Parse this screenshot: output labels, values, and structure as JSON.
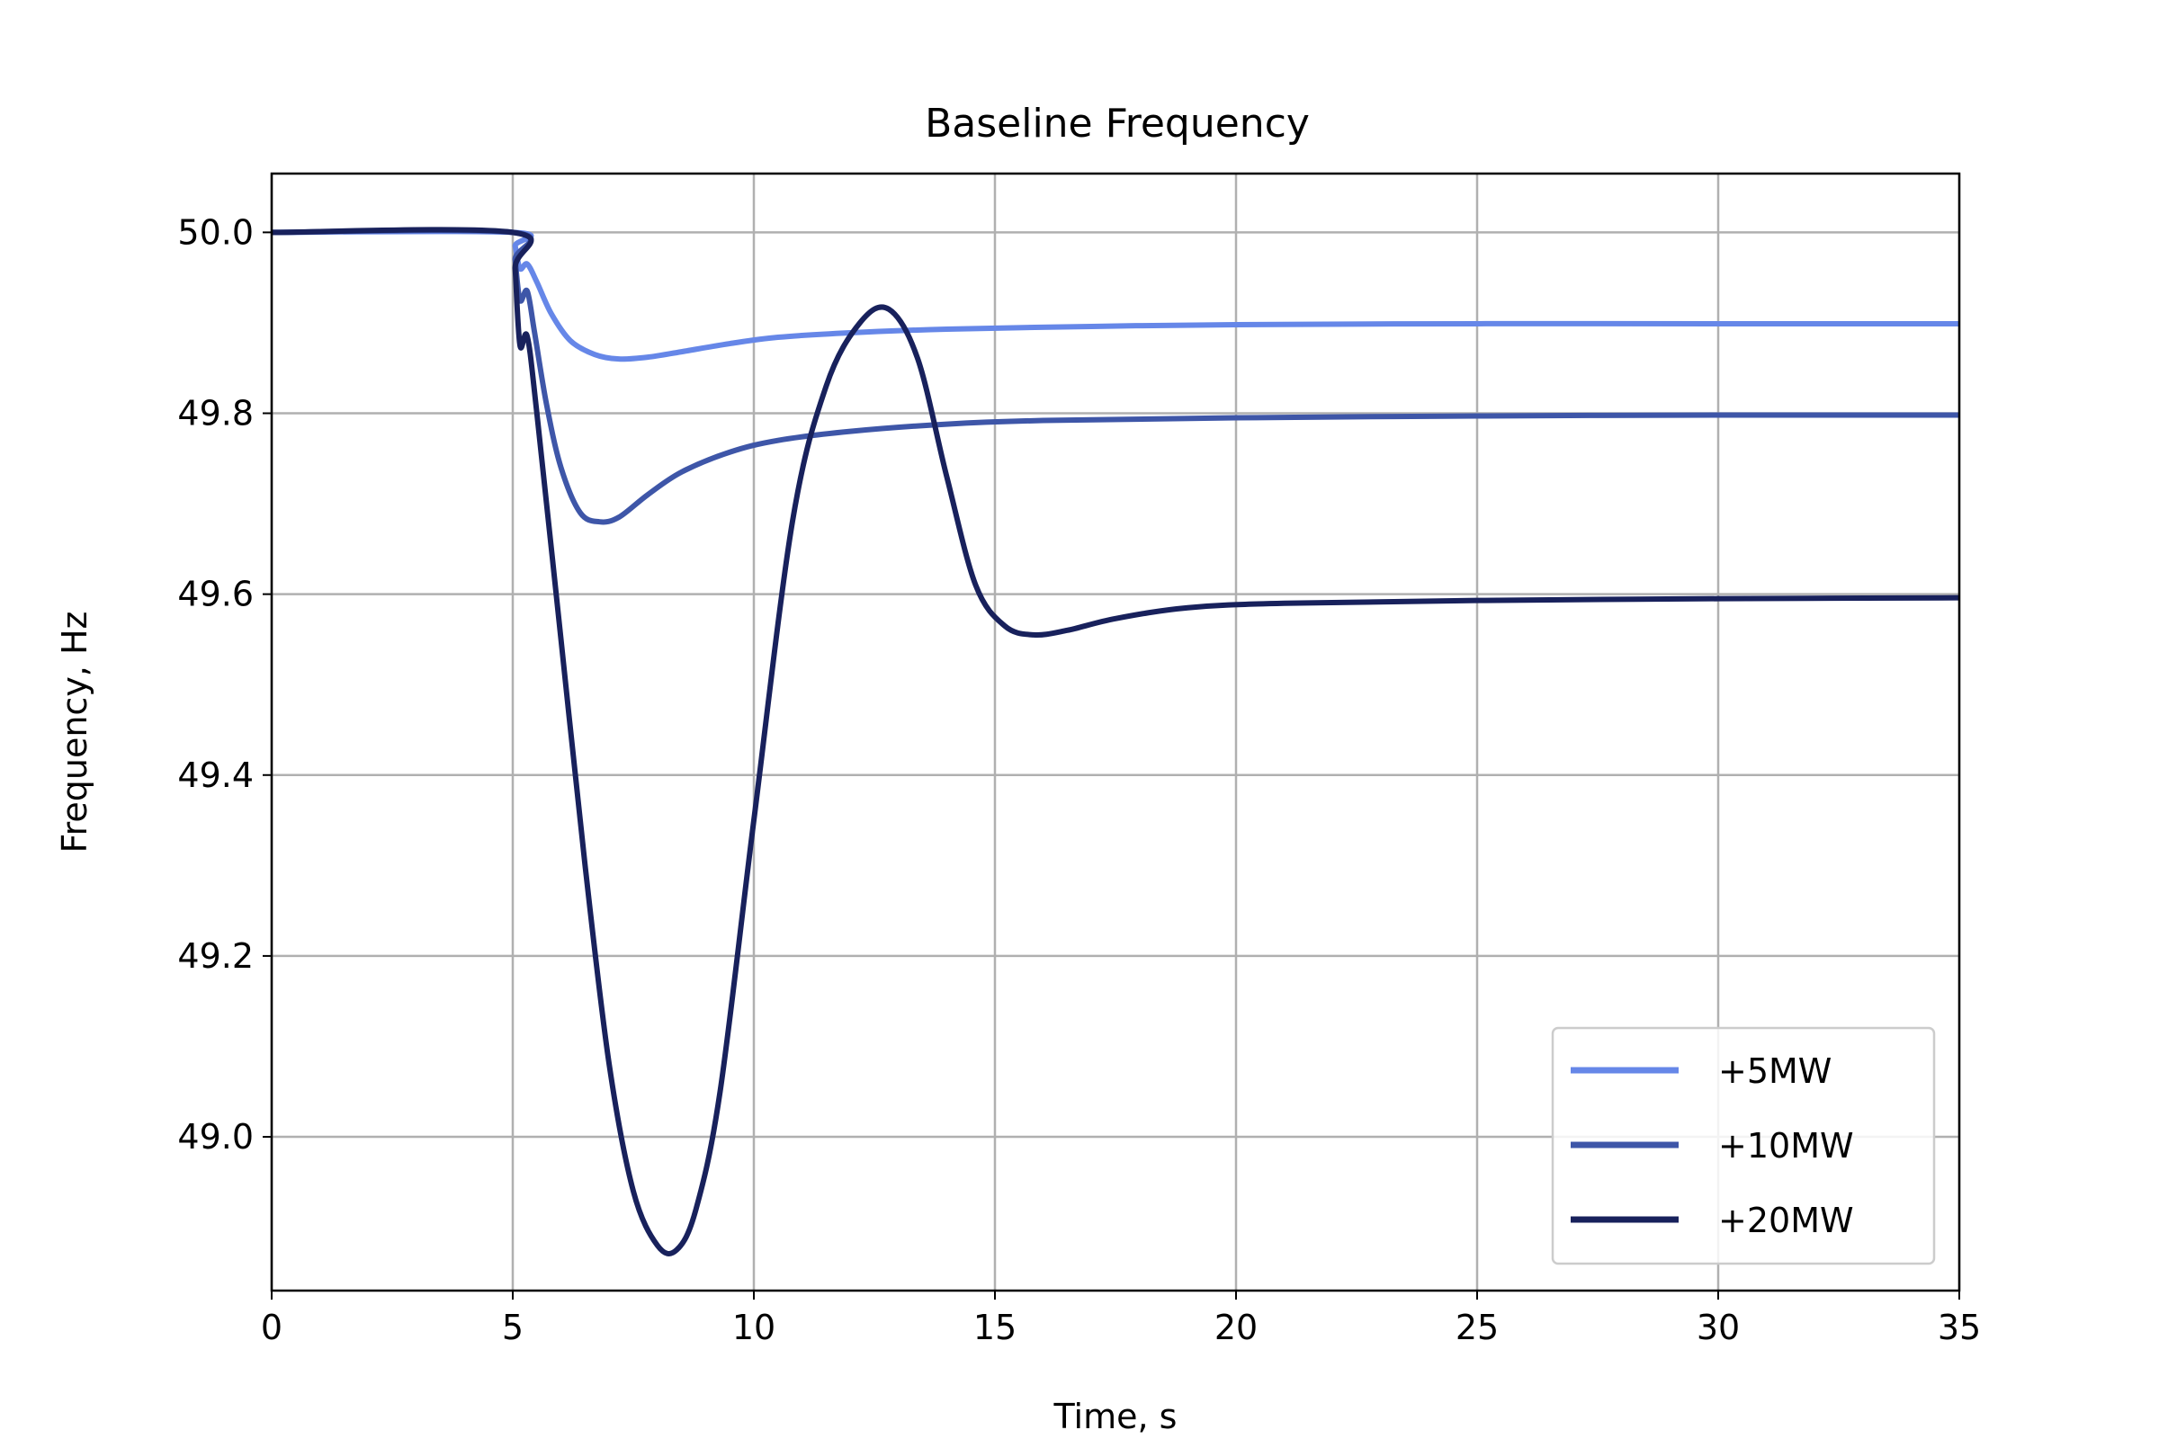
{
  "chart_data": {
    "type": "line",
    "title": "Baseline Frequency",
    "xlabel": "Time, s",
    "ylabel": "Frequency, Hz",
    "xlim": [
      0,
      35
    ],
    "ylim": [
      48.83,
      50.065
    ],
    "x_ticks": [
      0,
      5,
      10,
      15,
      20,
      25,
      30,
      35
    ],
    "x_tick_labels": [
      "0",
      "5",
      "10",
      "15",
      "20",
      "25",
      "30",
      "35"
    ],
    "y_ticks": [
      49.0,
      49.2,
      49.4,
      49.6,
      49.8,
      50.0
    ],
    "y_tick_labels": [
      "49.0",
      "49.2",
      "49.4",
      "49.6",
      "49.8",
      "50.0"
    ],
    "grid": true,
    "legend_position": "lower-right",
    "series": [
      {
        "name": "+5MW",
        "color": "#6687e8",
        "x": [
          0,
          5,
          5.05,
          5.15,
          5.3,
          5.5,
          5.8,
          6.2,
          6.7,
          7.2,
          7.8,
          8.5,
          9.5,
          10.5,
          12,
          14,
          17,
          20,
          25,
          30,
          35
        ],
        "y": [
          50.0,
          50.0,
          49.985,
          49.96,
          49.965,
          49.945,
          49.91,
          49.88,
          49.865,
          49.86,
          49.862,
          49.868,
          49.877,
          49.884,
          49.889,
          49.893,
          49.896,
          49.898,
          49.899,
          49.899,
          49.899
        ]
      },
      {
        "name": "+10MW",
        "color": "#3e56a8",
        "x": [
          0,
          5,
          5.05,
          5.15,
          5.3,
          5.45,
          5.7,
          6.0,
          6.4,
          6.8,
          7.2,
          7.8,
          8.5,
          9.5,
          10.5,
          12,
          14,
          16,
          20,
          25,
          30,
          35
        ],
        "y": [
          50.0,
          50.0,
          49.97,
          49.925,
          49.935,
          49.89,
          49.81,
          49.74,
          49.69,
          49.68,
          49.685,
          49.71,
          49.735,
          49.757,
          49.77,
          49.78,
          49.788,
          49.792,
          49.795,
          49.797,
          49.798,
          49.798
        ]
      },
      {
        "name": "+20MW",
        "color": "#18215c",
        "x": [
          0,
          5,
          5.05,
          5.15,
          5.3,
          5.5,
          6.0,
          6.5,
          7.0,
          7.5,
          8.0,
          8.4,
          8.8,
          9.3,
          10.0,
          10.8,
          11.5,
          12.2,
          12.8,
          13.4,
          14.0,
          14.6,
          15.2,
          15.8,
          16.5,
          17.5,
          19,
          21,
          25,
          30,
          35
        ],
        "y": [
          50.0,
          50.0,
          49.96,
          49.875,
          49.885,
          49.8,
          49.55,
          49.3,
          49.08,
          48.94,
          48.88,
          48.875,
          48.92,
          49.05,
          49.35,
          49.68,
          49.83,
          49.9,
          49.915,
          49.86,
          49.73,
          49.61,
          49.565,
          49.555,
          49.56,
          49.573,
          49.585,
          49.59,
          49.593,
          49.595,
          49.596
        ]
      }
    ]
  }
}
